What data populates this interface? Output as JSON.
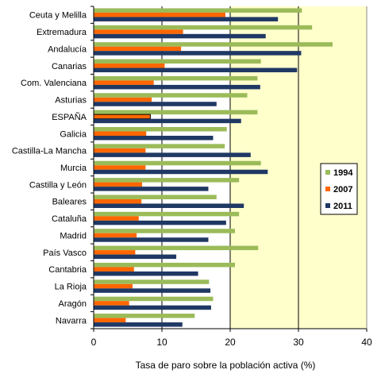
{
  "chart_data": {
    "type": "bar",
    "orientation": "horizontal",
    "categories": [
      "Ceuta y Melilla",
      "Extremadura",
      "Andalucía",
      "Canarias",
      "Com. Valenciana",
      "Asturias",
      "ESPAÑA",
      "Galicia",
      "Castilla-La Mancha",
      "Murcia",
      "Castilla y León",
      "Baleares",
      "Cataluña",
      "Madrid",
      "País Vasco",
      "Cantabria",
      "La Rioja",
      "Aragón",
      "Navarra"
    ],
    "series": [
      {
        "name": "1994",
        "color": "#9bbb59",
        "values": [
          30.5,
          32.0,
          35.0,
          24.5,
          24.0,
          22.5,
          24.0,
          19.5,
          19.2,
          24.5,
          21.3,
          18.0,
          21.3,
          20.7,
          24.1,
          20.7,
          16.9,
          17.5,
          14.8
        ]
      },
      {
        "name": "2007",
        "color": "#ff6600",
        "values": [
          19.3,
          13.1,
          12.8,
          10.4,
          8.8,
          8.5,
          8.3,
          7.7,
          7.6,
          7.6,
          7.1,
          7.0,
          6.6,
          6.3,
          6.1,
          5.9,
          5.7,
          5.2,
          4.7
        ]
      },
      {
        "name": "2011",
        "color": "#1f3864",
        "values": [
          27.0,
          25.2,
          30.4,
          29.8,
          24.4,
          18.0,
          21.6,
          17.5,
          23.0,
          25.5,
          16.8,
          22.0,
          19.4,
          16.8,
          12.1,
          15.3,
          17.1,
          17.2,
          13.0
        ]
      }
    ],
    "xlabel": "Tasa de paro sobre la población activa (%)",
    "xlim": [
      0,
      40
    ],
    "xticks": [
      0,
      10,
      20,
      30,
      40
    ],
    "highlight_category": "ESPAÑA",
    "grid": "vertical lines",
    "legend_position": "right",
    "colors": {
      "plot_background_left": "#ffffff",
      "plot_background_right": "#ffffcc"
    }
  }
}
